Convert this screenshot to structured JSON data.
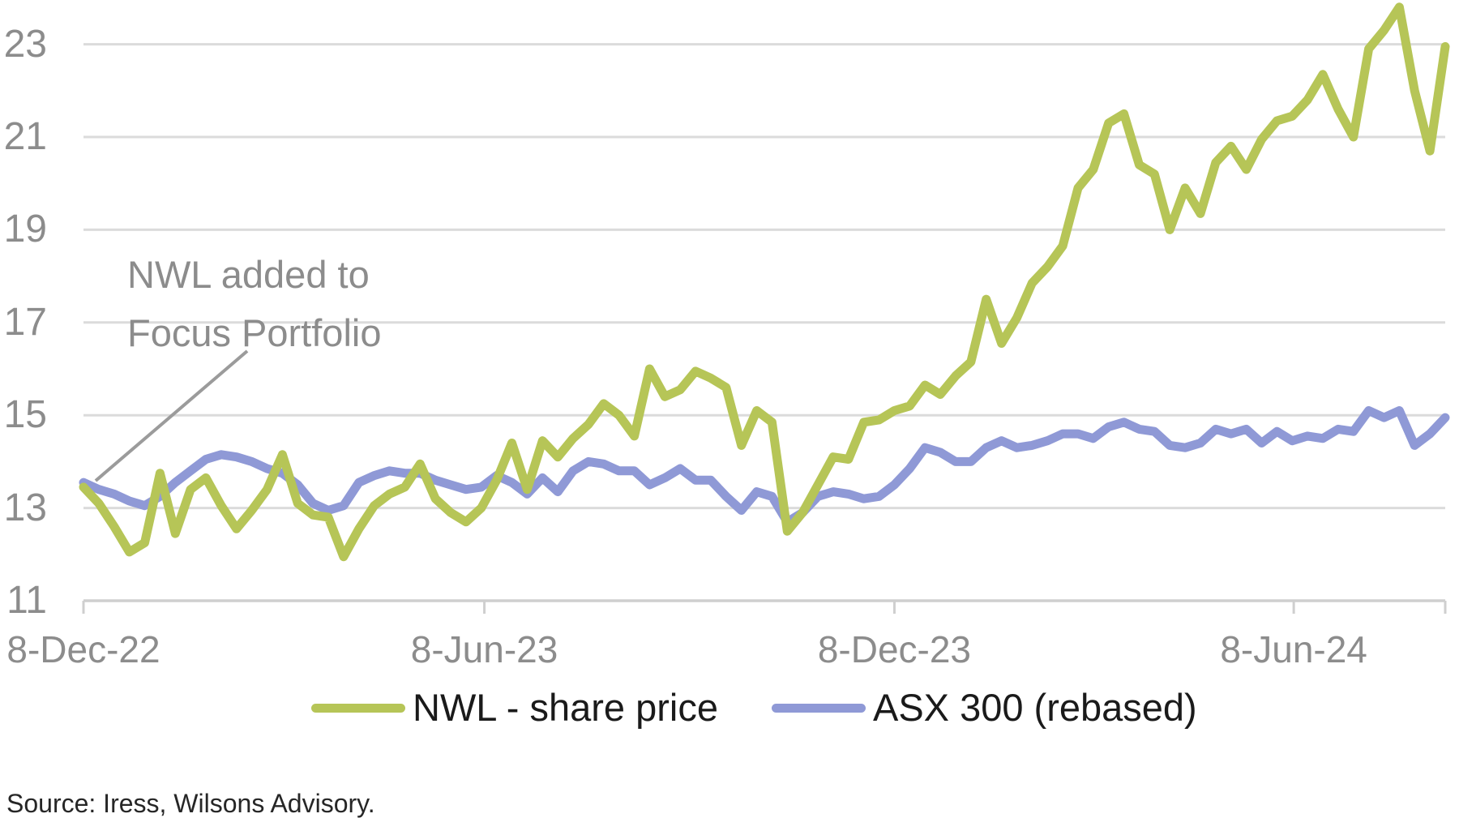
{
  "chart_data": {
    "type": "line",
    "title": "",
    "x_unit": "weeks",
    "x_start": "8-Dec-22",
    "x_points": 90,
    "x_tick_labels": [
      "8-Dec-22",
      "8-Jun-23",
      "8-Dec-23",
      "8-Jun-24"
    ],
    "x_tick_weeks": [
      0,
      26.2,
      53.0,
      79.1
    ],
    "ylim": [
      11,
      23.96
    ],
    "yticks": [
      11,
      13,
      15,
      17,
      19,
      21,
      23
    ],
    "grid": "horizontal",
    "legend_position": "bottom",
    "series": [
      {
        "name": "NWL - share price",
        "color": "#b6c557",
        "values": [
          13.45,
          13.1,
          12.6,
          12.05,
          12.25,
          13.75,
          12.45,
          13.4,
          13.65,
          13.05,
          12.55,
          12.95,
          13.4,
          14.15,
          13.1,
          12.85,
          12.8,
          11.95,
          12.55,
          13.05,
          13.3,
          13.45,
          13.95,
          13.2,
          12.9,
          12.7,
          13.0,
          13.6,
          14.4,
          13.4,
          14.45,
          14.1,
          14.5,
          14.8,
          15.25,
          15.0,
          14.55,
          16.0,
          15.4,
          15.55,
          15.95,
          15.8,
          15.6,
          14.35,
          15.1,
          14.85,
          12.5,
          12.9,
          13.5,
          14.1,
          14.05,
          14.85,
          14.9,
          15.1,
          15.2,
          15.65,
          15.45,
          15.85,
          16.15,
          17.5,
          16.55,
          17.1,
          17.85,
          18.2,
          18.65,
          19.9,
          20.3,
          21.3,
          21.5,
          20.4,
          20.2,
          19.0,
          19.9,
          19.35,
          20.45,
          20.8,
          20.3,
          20.95,
          21.35,
          21.45,
          21.8,
          22.35,
          21.6,
          21.0,
          22.9,
          23.3,
          23.8,
          22.0,
          20.7,
          22.95
        ]
      },
      {
        "name": "ASX 300 (rebased)",
        "color": "#8f99d6",
        "values": [
          13.55,
          13.4,
          13.3,
          13.15,
          13.05,
          13.25,
          13.55,
          13.8,
          14.05,
          14.15,
          14.1,
          14.0,
          13.85,
          13.75,
          13.5,
          13.1,
          12.95,
          13.05,
          13.55,
          13.7,
          13.8,
          13.75,
          13.75,
          13.6,
          13.5,
          13.4,
          13.45,
          13.7,
          13.55,
          13.3,
          13.65,
          13.35,
          13.8,
          14.0,
          13.95,
          13.8,
          13.8,
          13.5,
          13.65,
          13.85,
          13.6,
          13.6,
          13.25,
          12.95,
          13.35,
          13.25,
          12.7,
          12.9,
          13.25,
          13.35,
          13.3,
          13.2,
          13.25,
          13.5,
          13.85,
          14.3,
          14.2,
          14.0,
          14.0,
          14.3,
          14.45,
          14.3,
          14.35,
          14.45,
          14.6,
          14.6,
          14.5,
          14.75,
          14.85,
          14.7,
          14.65,
          14.35,
          14.3,
          14.4,
          14.7,
          14.6,
          14.7,
          14.4,
          14.65,
          14.45,
          14.55,
          14.5,
          14.7,
          14.65,
          15.1,
          14.95,
          15.1,
          14.35,
          14.6,
          14.95
        ]
      }
    ],
    "annotation": {
      "line1": "NWL added to",
      "line2": "Focus Portfolio",
      "points_to": "series start at 8-Dec-22 (~13.5)"
    }
  },
  "colors": {
    "nwl_line": "#b6c557",
    "asx_line": "#8f99d6",
    "gridline": "#dbdbdb",
    "axis_line": "#cfcfcf",
    "axis_label": "#8c8c8c",
    "annotation_text": "#8c8c8c",
    "leader_line": "#9b9b9b",
    "legend_text": "#1a1a1a",
    "source_text": "#262626"
  },
  "source": {
    "text": "Source: Iress, Wilsons Advisory."
  }
}
